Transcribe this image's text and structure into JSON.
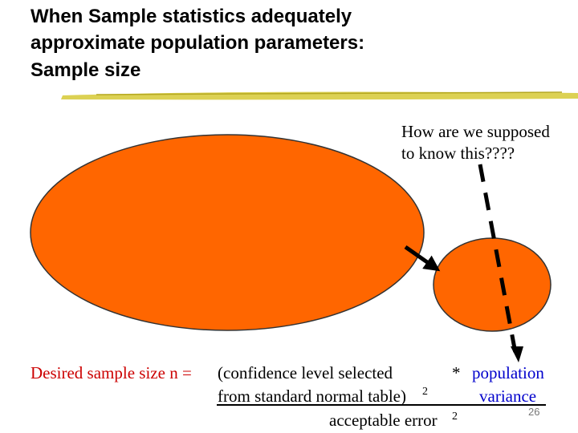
{
  "title": {
    "lines": [
      "When Sample statistics adequately",
      "approximate population parameters:",
      "Sample size"
    ]
  },
  "callout": {
    "lines": [
      "How are we supposed",
      "to know this????"
    ]
  },
  "formula": {
    "lead": "Desired sample size n =",
    "numerator_line1": "(confidence level selected",
    "times": "*",
    "variance_line1": "population",
    "numerator_line2": "from standard normal table)",
    "numerator_exponent": "2",
    "variance_line2": "variance",
    "denominator": "acceptable error",
    "denominator_exponent": "2"
  },
  "slide_number": "26"
}
